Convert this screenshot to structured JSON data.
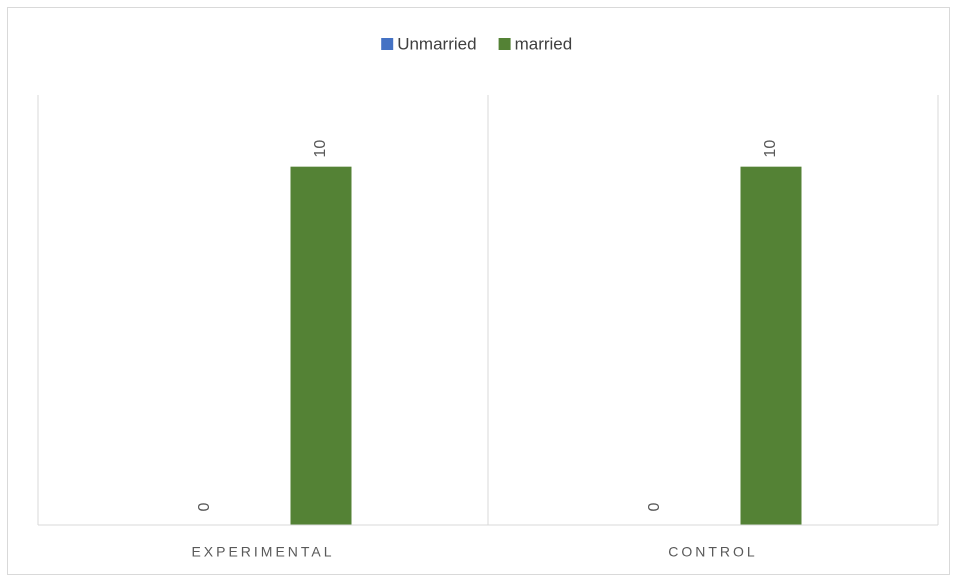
{
  "chart_data": {
    "type": "bar",
    "categories": [
      "EXPERIMENTAL",
      "CONTROL"
    ],
    "series": [
      {
        "name": "Unmarried",
        "color": "#4472c4",
        "values": [
          0,
          0
        ]
      },
      {
        "name": "married",
        "color": "#548235",
        "values": [
          10,
          10
        ]
      }
    ],
    "ylim": [
      0,
      12
    ],
    "legend": "top",
    "data_labels": true
  }
}
